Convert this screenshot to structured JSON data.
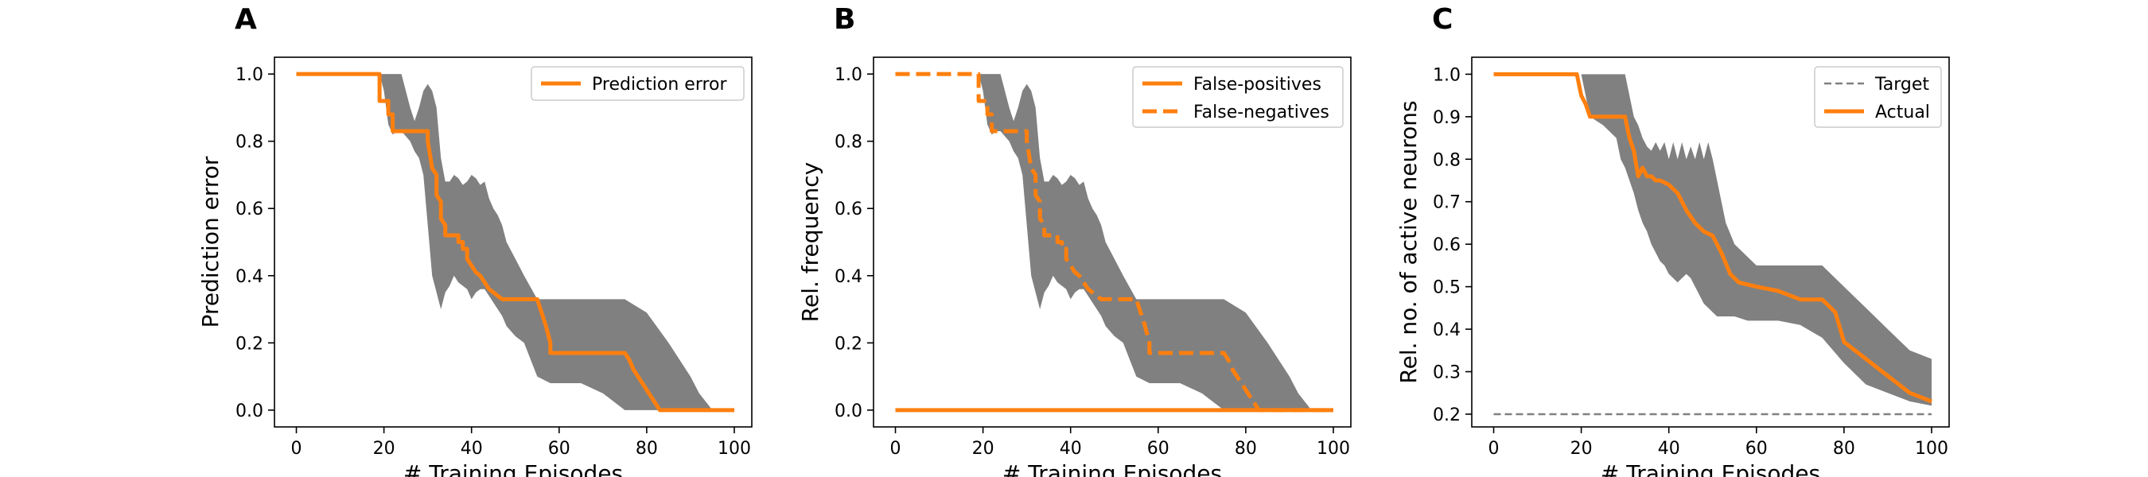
{
  "colors": {
    "band": "#808080",
    "line": "#ff7f0e",
    "target": "#808080",
    "frame": "#000000"
  },
  "chart_data": [
    {
      "type": "line",
      "panel": "A",
      "xlabel": "# Training Episodes",
      "ylabel": "Prediction error",
      "xlim": [
        -5,
        104
      ],
      "ylim": [
        -0.05,
        1.05
      ],
      "xticks": [
        "0",
        "20",
        "40",
        "60",
        "80",
        "100"
      ],
      "yticks": [
        "0.0",
        "0.2",
        "0.4",
        "0.6",
        "0.8",
        "1.0"
      ],
      "xtick_values": [
        0,
        20,
        40,
        60,
        80,
        100
      ],
      "ytick_values": [
        0,
        0.2,
        0.4,
        0.6,
        0.8,
        1.0
      ],
      "legend_position": "top-right",
      "band": {
        "x": [
          0,
          19,
          20,
          21,
          22,
          23,
          24,
          26,
          27,
          28,
          29,
          30,
          31,
          32,
          33,
          34,
          35,
          36,
          37,
          38,
          39,
          40,
          41,
          42,
          43,
          44,
          45,
          46,
          47,
          48,
          50,
          52,
          55,
          58,
          60,
          65,
          70,
          75,
          80,
          85,
          90,
          92,
          95,
          100
        ],
        "upper": [
          1,
          1,
          1,
          1,
          1,
          1,
          1,
          0.9,
          0.86,
          0.9,
          0.95,
          0.97,
          0.95,
          0.9,
          0.75,
          0.68,
          0.68,
          0.7,
          0.69,
          0.67,
          0.68,
          0.7,
          0.69,
          0.67,
          0.68,
          0.63,
          0.6,
          0.58,
          0.55,
          0.5,
          0.45,
          0.4,
          0.33,
          0.33,
          0.33,
          0.33,
          0.33,
          0.33,
          0.29,
          0.2,
          0.1,
          0.05,
          0,
          0
        ],
        "lower": [
          1,
          1,
          0.95,
          0.85,
          0.82,
          0.83,
          0.83,
          0.8,
          0.77,
          0.75,
          0.7,
          0.55,
          0.4,
          0.35,
          0.3,
          0.35,
          0.37,
          0.4,
          0.38,
          0.37,
          0.36,
          0.33,
          0.35,
          0.36,
          0.36,
          0.34,
          0.32,
          0.3,
          0.28,
          0.25,
          0.22,
          0.2,
          0.1,
          0.08,
          0.08,
          0.08,
          0.05,
          0,
          0,
          0,
          0,
          0,
          0,
          0
        ]
      },
      "series": [
        {
          "name": "Prediction error",
          "style": "solid",
          "x": [
            0,
            19,
            19,
            20,
            21,
            21,
            22,
            22,
            30,
            30,
            31,
            32,
            32,
            33,
            33,
            34,
            34,
            37,
            37,
            38,
            38,
            39,
            39,
            40,
            41,
            42,
            43,
            44,
            45,
            46,
            47,
            55,
            56,
            57,
            58,
            58,
            75,
            76,
            77,
            78,
            79,
            80,
            82,
            83,
            100
          ],
          "y": [
            1,
            1,
            0.92,
            0.92,
            0.92,
            0.88,
            0.88,
            0.83,
            0.83,
            0.8,
            0.72,
            0.7,
            0.64,
            0.62,
            0.57,
            0.55,
            0.52,
            0.52,
            0.5,
            0.5,
            0.48,
            0.48,
            0.45,
            0.43,
            0.41,
            0.4,
            0.38,
            0.36,
            0.35,
            0.34,
            0.33,
            0.33,
            0.29,
            0.25,
            0.2,
            0.17,
            0.17,
            0.15,
            0.12,
            0.1,
            0.08,
            0.06,
            0.02,
            0,
            0
          ]
        }
      ]
    },
    {
      "type": "line",
      "panel": "B",
      "xlabel": "# Training Episodes",
      "ylabel": "Rel. frequency",
      "xlim": [
        -5,
        104
      ],
      "ylim": [
        -0.05,
        1.05
      ],
      "xticks": [
        "0",
        "20",
        "40",
        "60",
        "80",
        "100"
      ],
      "yticks": [
        "0.0",
        "0.2",
        "0.4",
        "0.6",
        "0.8",
        "1.0"
      ],
      "xtick_values": [
        0,
        20,
        40,
        60,
        80,
        100
      ],
      "ytick_values": [
        0,
        0.2,
        0.4,
        0.6,
        0.8,
        1.0
      ],
      "legend_position": "top-right",
      "band": {
        "x": [
          0,
          19,
          20,
          21,
          22,
          23,
          24,
          26,
          27,
          28,
          29,
          30,
          31,
          32,
          33,
          34,
          35,
          36,
          37,
          38,
          39,
          40,
          41,
          42,
          43,
          44,
          45,
          46,
          47,
          48,
          50,
          52,
          55,
          58,
          60,
          65,
          70,
          75,
          80,
          85,
          90,
          92,
          95,
          100
        ],
        "upper": [
          1,
          1,
          1,
          1,
          1,
          1,
          1,
          0.9,
          0.86,
          0.9,
          0.95,
          0.97,
          0.95,
          0.9,
          0.75,
          0.68,
          0.68,
          0.7,
          0.69,
          0.67,
          0.68,
          0.7,
          0.69,
          0.67,
          0.68,
          0.63,
          0.6,
          0.58,
          0.55,
          0.5,
          0.45,
          0.4,
          0.33,
          0.33,
          0.33,
          0.33,
          0.33,
          0.33,
          0.29,
          0.2,
          0.1,
          0.05,
          0,
          0
        ],
        "lower": [
          1,
          1,
          0.95,
          0.85,
          0.82,
          0.83,
          0.83,
          0.8,
          0.77,
          0.75,
          0.7,
          0.55,
          0.4,
          0.35,
          0.3,
          0.35,
          0.37,
          0.4,
          0.38,
          0.37,
          0.36,
          0.33,
          0.35,
          0.36,
          0.36,
          0.34,
          0.32,
          0.3,
          0.28,
          0.25,
          0.22,
          0.2,
          0.1,
          0.08,
          0.08,
          0.08,
          0.05,
          0,
          0,
          0,
          0,
          0,
          0,
          0
        ]
      },
      "series": [
        {
          "name": "False-positives",
          "style": "solid",
          "x": [
            0,
            100
          ],
          "y": [
            0,
            0
          ]
        },
        {
          "name": "False-negatives",
          "style": "dashed",
          "x": [
            0,
            19,
            19,
            20,
            21,
            21,
            22,
            22,
            30,
            30,
            31,
            32,
            32,
            33,
            33,
            34,
            34,
            37,
            37,
            38,
            38,
            39,
            39,
            40,
            41,
            42,
            43,
            44,
            45,
            46,
            47,
            55,
            56,
            57,
            58,
            58,
            75,
            76,
            77,
            78,
            79,
            80,
            82,
            83,
            100
          ],
          "y": [
            1,
            1,
            0.92,
            0.92,
            0.92,
            0.88,
            0.88,
            0.83,
            0.83,
            0.8,
            0.72,
            0.7,
            0.64,
            0.62,
            0.57,
            0.55,
            0.52,
            0.52,
            0.5,
            0.5,
            0.48,
            0.48,
            0.45,
            0.43,
            0.41,
            0.4,
            0.38,
            0.36,
            0.35,
            0.34,
            0.33,
            0.33,
            0.29,
            0.25,
            0.2,
            0.17,
            0.17,
            0.15,
            0.12,
            0.1,
            0.08,
            0.06,
            0.02,
            0,
            0
          ]
        }
      ]
    },
    {
      "type": "line",
      "panel": "C",
      "xlabel": "# Training Episodes",
      "ylabel": "Rel. no. of active neurons",
      "xlim": [
        -5,
        104
      ],
      "ylim": [
        0.17,
        1.04
      ],
      "xticks": [
        "0",
        "20",
        "40",
        "60",
        "80",
        "100"
      ],
      "yticks": [
        "0.2",
        "0.3",
        "0.4",
        "0.5",
        "0.6",
        "0.7",
        "0.8",
        "0.9",
        "1.0"
      ],
      "xtick_values": [
        0,
        20,
        40,
        60,
        80,
        100
      ],
      "ytick_values": [
        0.2,
        0.3,
        0.4,
        0.5,
        0.6,
        0.7,
        0.8,
        0.9,
        1.0
      ],
      "legend_position": "top-right",
      "band": {
        "x": [
          0,
          19,
          20,
          21,
          22,
          25,
          28,
          29,
          30,
          31,
          32,
          33,
          34,
          35,
          36,
          37,
          38,
          39,
          40,
          41,
          42,
          43,
          44,
          45,
          46,
          47,
          48,
          49,
          50,
          51,
          52,
          53,
          55,
          58,
          60,
          65,
          70,
          75,
          80,
          85,
          90,
          95,
          100
        ],
        "upper": [
          1,
          1,
          1,
          1,
          1,
          1,
          1,
          1,
          1,
          0.95,
          0.9,
          0.88,
          0.85,
          0.83,
          0.82,
          0.84,
          0.82,
          0.84,
          0.8,
          0.84,
          0.8,
          0.84,
          0.8,
          0.83,
          0.8,
          0.84,
          0.8,
          0.84,
          0.8,
          0.75,
          0.7,
          0.65,
          0.6,
          0.57,
          0.55,
          0.55,
          0.55,
          0.55,
          0.5,
          0.45,
          0.4,
          0.35,
          0.33
        ],
        "lower": [
          1,
          1,
          1,
          0.95,
          0.9,
          0.88,
          0.85,
          0.8,
          0.78,
          0.75,
          0.72,
          0.68,
          0.65,
          0.63,
          0.6,
          0.58,
          0.56,
          0.55,
          0.53,
          0.52,
          0.51,
          0.52,
          0.53,
          0.52,
          0.5,
          0.48,
          0.46,
          0.45,
          0.44,
          0.43,
          0.43,
          0.43,
          0.43,
          0.42,
          0.42,
          0.42,
          0.41,
          0.38,
          0.32,
          0.27,
          0.25,
          0.23,
          0.22
        ]
      },
      "series": [
        {
          "name": "Target",
          "style": "dashed-thin",
          "x": [
            0,
            100
          ],
          "y": [
            0.2,
            0.2
          ]
        },
        {
          "name": "Actual",
          "style": "solid",
          "x": [
            0,
            19,
            20,
            21,
            22,
            30,
            31,
            32,
            33,
            34,
            35,
            36,
            37,
            38,
            40,
            42,
            44,
            46,
            48,
            50,
            52,
            54,
            56,
            60,
            65,
            70,
            75,
            78,
            80,
            85,
            90,
            95,
            100
          ],
          "y": [
            1,
            1,
            0.95,
            0.93,
            0.9,
            0.9,
            0.85,
            0.82,
            0.76,
            0.78,
            0.76,
            0.76,
            0.75,
            0.75,
            0.74,
            0.72,
            0.68,
            0.65,
            0.63,
            0.62,
            0.58,
            0.53,
            0.51,
            0.5,
            0.49,
            0.47,
            0.47,
            0.44,
            0.37,
            0.33,
            0.29,
            0.25,
            0.23
          ]
        }
      ]
    }
  ]
}
